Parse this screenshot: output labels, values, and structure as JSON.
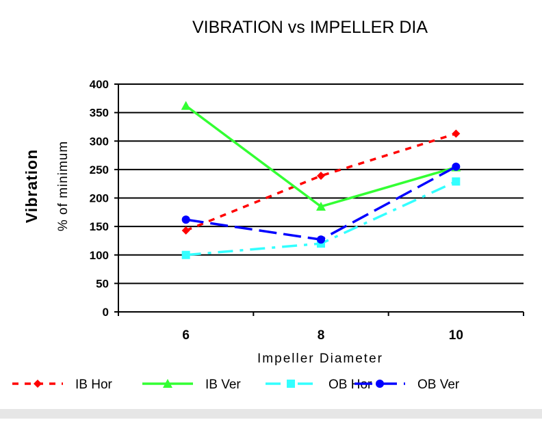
{
  "chart_data": {
    "type": "line",
    "title": "VIBRATION vs IMPELLER DIA",
    "xlabel": "Impeller Diameter",
    "ylabel": "Vibration",
    "ylabel_sub": "% of minimum",
    "categories": [
      "6",
      "8",
      "10"
    ],
    "yticks": [
      "0",
      "50",
      "100",
      "150",
      "200",
      "250",
      "300",
      "350",
      "400"
    ],
    "ylim": [
      0,
      400
    ],
    "grid": true,
    "legend_position": "bottom",
    "series": [
      {
        "name": "IB Hor",
        "values": [
          143,
          239,
          313
        ],
        "color": "#ff0000",
        "marker": "diamond",
        "dash": "dash-short"
      },
      {
        "name": "IB Ver",
        "values": [
          362,
          185,
          254
        ],
        "color": "#33ff33",
        "marker": "triangle",
        "dash": "solid"
      },
      {
        "name": "OB Hor",
        "values": [
          100,
          120,
          229
        ],
        "color": "#33ffff",
        "marker": "square",
        "dash": "dash-dot"
      },
      {
        "name": "OB Ver",
        "values": [
          162,
          127,
          255
        ],
        "color": "#0000ff",
        "marker": "circle",
        "dash": "dash-long"
      }
    ]
  }
}
